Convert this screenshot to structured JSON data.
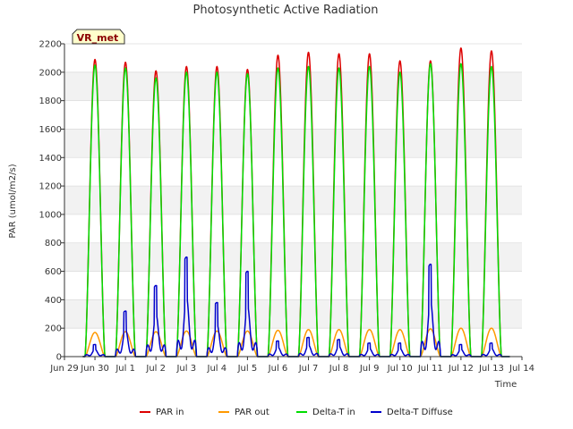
{
  "chart_data": {
    "type": "line",
    "title": "Photosynthetic Active Radiation",
    "xlabel": "Time",
    "ylabel": "PAR (umol/m2/s)",
    "ylim": [
      0,
      2200
    ],
    "yticks": [
      0,
      200,
      400,
      600,
      800,
      1000,
      1200,
      1400,
      1600,
      1800,
      2000,
      2200
    ],
    "xlim": [
      0,
      15
    ],
    "xticks": [
      {
        "value": 0,
        "label": "Jun 29"
      },
      {
        "value": 1,
        "label": "Jun 30"
      },
      {
        "value": 2,
        "label": "Jul 1"
      },
      {
        "value": 3,
        "label": "Jul 2"
      },
      {
        "value": 4,
        "label": "Jul 3"
      },
      {
        "value": 5,
        "label": "Jul 4"
      },
      {
        "value": 6,
        "label": "Jul 5"
      },
      {
        "value": 7,
        "label": "Jul 6"
      },
      {
        "value": 8,
        "label": "Jul 7"
      },
      {
        "value": 9,
        "label": "Jul 8"
      },
      {
        "value": 10,
        "label": "Jul 9"
      },
      {
        "value": 11,
        "label": "Jul 10"
      },
      {
        "value": 12,
        "label": "Jul 11"
      },
      {
        "value": 13,
        "label": "Jul 12"
      },
      {
        "value": 14,
        "label": "Jul 13"
      },
      {
        "value": 15,
        "label": "Jul 14"
      }
    ],
    "site_label": "VR_met",
    "data_span": [
      0.6,
      14.6
    ],
    "daily_peak_centers": [
      1.0,
      2.0,
      3.0,
      4.0,
      5.0,
      6.0,
      7.0,
      8.0,
      9.0,
      10.0,
      11.0,
      12.0,
      13.0,
      14.0
    ],
    "series": [
      {
        "name": "PAR in",
        "color": "#dd0000",
        "daily_peaks": [
          2090,
          2070,
          2010,
          2040,
          2040,
          2020,
          2120,
          2140,
          2130,
          2130,
          2080,
          2080,
          2170,
          2150
        ]
      },
      {
        "name": "PAR out",
        "color": "#ff9900",
        "daily_peaks": [
          170,
          175,
          175,
          180,
          180,
          180,
          185,
          190,
          190,
          190,
          190,
          195,
          200,
          200
        ]
      },
      {
        "name": "Delta-T in",
        "color": "#00dd00",
        "daily_peaks": [
          2050,
          2030,
          1960,
          2000,
          2000,
          1990,
          2030,
          2040,
          2030,
          2040,
          2000,
          2060,
          2060,
          2040
        ]
      },
      {
        "name": "Delta-T Diffuse",
        "color": "#0000cc",
        "daily_peaks": [
          85,
          320,
          500,
          700,
          380,
          600,
          110,
          135,
          120,
          95,
          95,
          650,
          85,
          95
        ]
      }
    ],
    "legend_position": "bottom"
  }
}
